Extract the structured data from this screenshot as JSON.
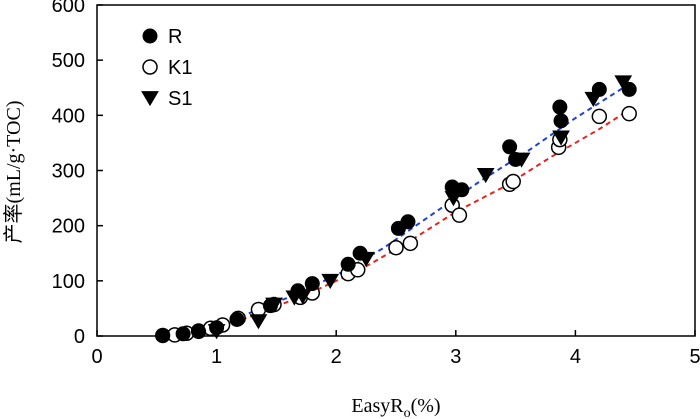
{
  "chart_data": {
    "type": "scatter",
    "title": "",
    "xlabel": "EasyRo(%)",
    "xlabel_main": "EasyR",
    "xlabel_sub": "o",
    "xlabel_unit": "(%)",
    "ylabel": "产率(mL/g·TOC)",
    "xlim": [
      0,
      5
    ],
    "ylim": [
      0,
      600
    ],
    "xticks": [
      "0",
      "1",
      "2",
      "3",
      "4",
      "5"
    ],
    "yticks": [
      "0",
      "100",
      "200",
      "300",
      "400",
      "500",
      "600"
    ],
    "grid": false,
    "legend_position": "top-left",
    "series": [
      {
        "name": "R",
        "marker": "filled-circle",
        "color": "#000000",
        "points": [
          [
            0.55,
            1
          ],
          [
            0.72,
            4
          ],
          [
            0.85,
            8
          ],
          [
            1.0,
            15
          ],
          [
            1.17,
            30
          ],
          [
            1.45,
            55
          ],
          [
            1.68,
            82
          ],
          [
            1.8,
            95
          ],
          [
            2.1,
            130
          ],
          [
            2.2,
            150
          ],
          [
            2.52,
            195
          ],
          [
            2.6,
            207
          ],
          [
            2.97,
            270
          ],
          [
            3.05,
            265
          ],
          [
            3.45,
            343
          ],
          [
            3.5,
            320
          ],
          [
            3.87,
            415
          ],
          [
            3.88,
            390
          ],
          [
            4.2,
            447
          ],
          [
            4.45,
            447
          ]
        ]
      },
      {
        "name": "K1",
        "marker": "open-circle",
        "color": "#000000",
        "points": [
          [
            0.55,
            1
          ],
          [
            0.65,
            2
          ],
          [
            0.75,
            5
          ],
          [
            0.85,
            9
          ],
          [
            0.95,
            14
          ],
          [
            1.05,
            20
          ],
          [
            1.18,
            32
          ],
          [
            1.35,
            48
          ],
          [
            1.48,
            57
          ],
          [
            1.7,
            70
          ],
          [
            1.8,
            78
          ],
          [
            2.1,
            113
          ],
          [
            2.18,
            120
          ],
          [
            2.5,
            160
          ],
          [
            2.62,
            168
          ],
          [
            2.97,
            237
          ],
          [
            3.03,
            219
          ],
          [
            3.45,
            275
          ],
          [
            3.48,
            280
          ],
          [
            3.86,
            342
          ],
          [
            3.87,
            356
          ],
          [
            4.2,
            398
          ],
          [
            4.45,
            403
          ]
        ]
      },
      {
        "name": "S1",
        "marker": "filled-triangle-down",
        "color": "#000000",
        "points": [
          [
            1.0,
            9
          ],
          [
            1.35,
            27
          ],
          [
            1.48,
            57
          ],
          [
            1.65,
            70
          ],
          [
            1.72,
            72
          ],
          [
            1.95,
            100
          ],
          [
            2.25,
            140
          ],
          [
            2.98,
            250
          ],
          [
            3.25,
            292
          ],
          [
            3.55,
            320
          ],
          [
            3.88,
            360
          ],
          [
            4.15,
            430
          ],
          [
            4.4,
            460
          ]
        ]
      }
    ],
    "trendlines": [
      {
        "style": "dashed",
        "color": "#1f3fd6",
        "points": [
          [
            1.2,
            35
          ],
          [
            1.6,
            70
          ],
          [
            2.0,
            110
          ],
          [
            2.4,
            160
          ],
          [
            2.8,
            220
          ],
          [
            3.2,
            280
          ],
          [
            3.6,
            335
          ],
          [
            4.0,
            395
          ],
          [
            4.4,
            450
          ]
        ]
      },
      {
        "style": "dashed",
        "color": "#e5231f",
        "points": [
          [
            0.55,
            1
          ],
          [
            0.8,
            5
          ],
          [
            1.0,
            13
          ],
          [
            1.4,
            45
          ],
          [
            1.8,
            80
          ],
          [
            2.2,
            120
          ],
          [
            2.6,
            170
          ],
          [
            3.0,
            225
          ],
          [
            3.4,
            270
          ],
          [
            3.8,
            325
          ],
          [
            4.2,
            375
          ],
          [
            4.45,
            410
          ]
        ]
      }
    ]
  }
}
